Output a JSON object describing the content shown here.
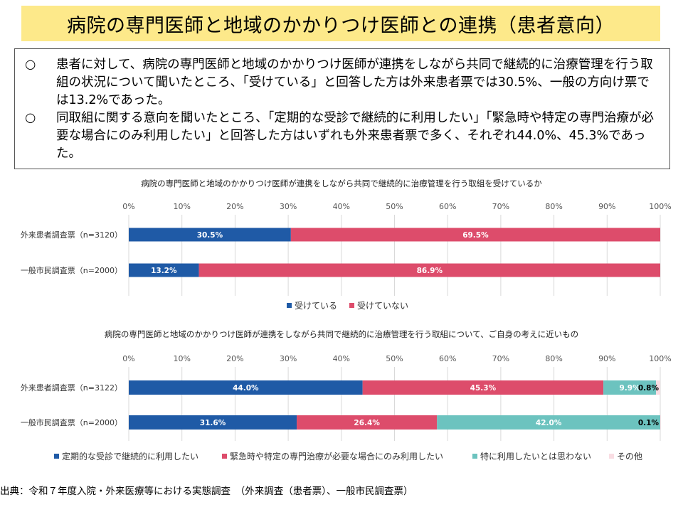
{
  "header": {
    "title": "病院の専門医師と地域のかかりつけ医師との連携（患者意向）"
  },
  "summary": [
    {
      "mark": "○",
      "text": "患者に対して、病院の専門医師と地域のかかりつけ医師が連携をしながら共同で継続的に治療管理を行う取組の状況について聞いたところ、「受けている」と回答した方は外来患者票では30.5%、一般の方向け票では13.2%であった。"
    },
    {
      "mark": "○",
      "text": "同取組に関する意向を聞いたところ、「定期的な受診で継続的に利用したい」「緊急時や特定の専門治療が必要な場合にのみ利用したい」と回答した方はいずれも外来患者票で多く、それぞれ44.0%、45.3%であった。"
    }
  ],
  "source": "出典：令和７年度入院・外来医療等における実態調査　（外来調査（患者票）、一般市民調査票）",
  "chart_data": [
    {
      "type": "bar",
      "stacked": true,
      "orientation": "horizontal",
      "title": "病院の専門医師と地域のかかりつけ医師が連携をしながら共同で継続的に治療管理を行う取組を受けているか",
      "categories": [
        "外来患者調査票（n=3120）",
        "一般市民調査票（n=2000）"
      ],
      "xlim": [
        0,
        100
      ],
      "ticks": [
        "0%",
        "10%",
        "20%",
        "30%",
        "40%",
        "50%",
        "60%",
        "70%",
        "80%",
        "90%",
        "100%"
      ],
      "grid": true,
      "legend_position": "bottom",
      "series": [
        {
          "name": "受けている",
          "color": "#1f5aa6",
          "values": [
            30.5,
            13.2
          ],
          "labels": [
            "30.5%",
            "13.2%"
          ]
        },
        {
          "name": "受けていない",
          "color": "#dd4c6b",
          "values": [
            69.5,
            86.9
          ],
          "labels": [
            "69.5%",
            "86.9%"
          ]
        }
      ]
    },
    {
      "type": "bar",
      "stacked": true,
      "orientation": "horizontal",
      "title": "病院の専門医師と地域のかかりつけ医師が連携をしながら共同で継続的に治療管理を行う取組について、ご自身の考えに近いもの",
      "categories": [
        "外来患者調査票（n=3122）",
        "一般市民調査票（n=2000）"
      ],
      "xlim": [
        0,
        100
      ],
      "ticks": [
        "0%",
        "10%",
        "20%",
        "30%",
        "40%",
        "50%",
        "60%",
        "70%",
        "80%",
        "90%",
        "100%"
      ],
      "grid": true,
      "legend_position": "bottom",
      "series": [
        {
          "name": "定期的な受診で継続的に利用したい",
          "color": "#1f5aa6",
          "values": [
            44.0,
            31.6
          ],
          "labels": [
            "44.0%",
            "31.6%"
          ]
        },
        {
          "name": "緊急時や特定の専門治療が必要な場合にのみ利用したい",
          "color": "#dd4c6b",
          "values": [
            45.3,
            26.4
          ],
          "labels": [
            "45.3%",
            "26.4%"
          ]
        },
        {
          "name": "特に利用したいとは思わない",
          "color": "#6cc3bf",
          "values": [
            9.9,
            42.0
          ],
          "labels": [
            "9.9%",
            "42.0%"
          ]
        },
        {
          "name": "その他",
          "color": "#f9dde3",
          "values": [
            0.8,
            0.1
          ],
          "labels": [
            "0.8%",
            "0.1%"
          ]
        }
      ]
    }
  ]
}
